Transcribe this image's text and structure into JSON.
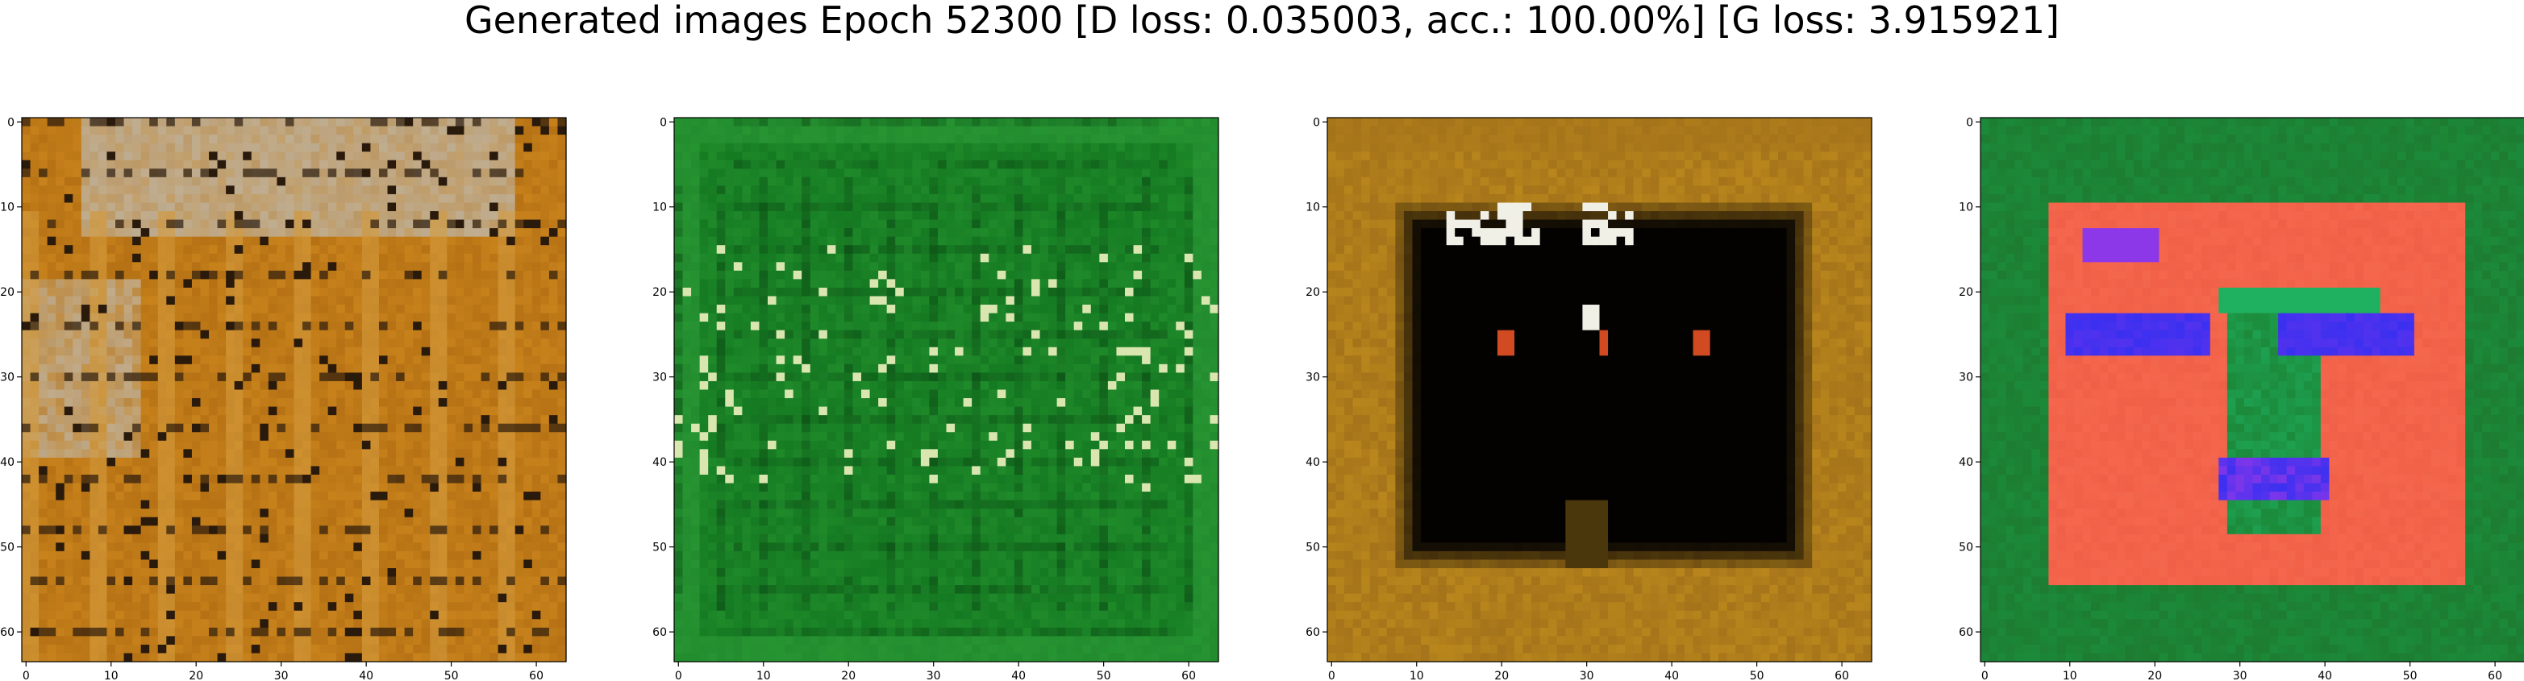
{
  "title": "Generated images Epoch 52300 [D loss: 0.035003, acc.: 100.00%] [G loss: 3.915921]",
  "chart_data": [
    {
      "type": "heatmap",
      "title": "",
      "xlabel": "",
      "ylabel": "",
      "xlim": [
        -0.5,
        63.5
      ],
      "ylim": [
        63.5,
        -0.5
      ],
      "xticks": [
        "0",
        "10",
        "20",
        "30",
        "40",
        "50",
        "60"
      ],
      "yticks": [
        "0",
        "10",
        "20",
        "30",
        "40",
        "50",
        "60"
      ],
      "palette": [
        "#c8821c",
        "#b57114",
        "#d39a3c",
        "#bfb6a6",
        "#2a1a0c"
      ]
    },
    {
      "type": "heatmap",
      "title": "",
      "xlabel": "",
      "ylabel": "",
      "xlim": [
        -0.5,
        63.5
      ],
      "ylim": [
        63.5,
        -0.5
      ],
      "xticks": [
        "0",
        "10",
        "20",
        "30",
        "40",
        "50",
        "60"
      ],
      "yticks": [
        "0",
        "10",
        "20",
        "30",
        "40",
        "50",
        "60"
      ],
      "palette": [
        "#1f8a2a",
        "#157a22",
        "#2f9e3a",
        "#0b4a14",
        "#d9e6b0"
      ]
    },
    {
      "type": "heatmap",
      "title": "",
      "xlabel": "",
      "ylabel": "",
      "xlim": [
        -0.5,
        63.5
      ],
      "ylim": [
        63.5,
        -0.5
      ],
      "xticks": [
        "0",
        "10",
        "20",
        "30",
        "40",
        "50",
        "60"
      ],
      "yticks": [
        "0",
        "10",
        "20",
        "30",
        "40",
        "50",
        "60"
      ],
      "palette": [
        "#b8861c",
        "#a5731a",
        "#030201",
        "#f0f0e6",
        "#d24a22"
      ]
    },
    {
      "type": "heatmap",
      "title": "",
      "xlabel": "",
      "ylabel": "",
      "xlim": [
        -0.5,
        63.5
      ],
      "ylim": [
        63.5,
        -0.5
      ],
      "xticks": [
        "0",
        "10",
        "20",
        "30",
        "40",
        "50",
        "60"
      ],
      "yticks": [
        "0",
        "10",
        "20",
        "30",
        "40",
        "50",
        "60"
      ],
      "palette": [
        "#1c8a3a",
        "#f06048",
        "#3a30f0",
        "#20c070",
        "#e040e0"
      ]
    }
  ]
}
